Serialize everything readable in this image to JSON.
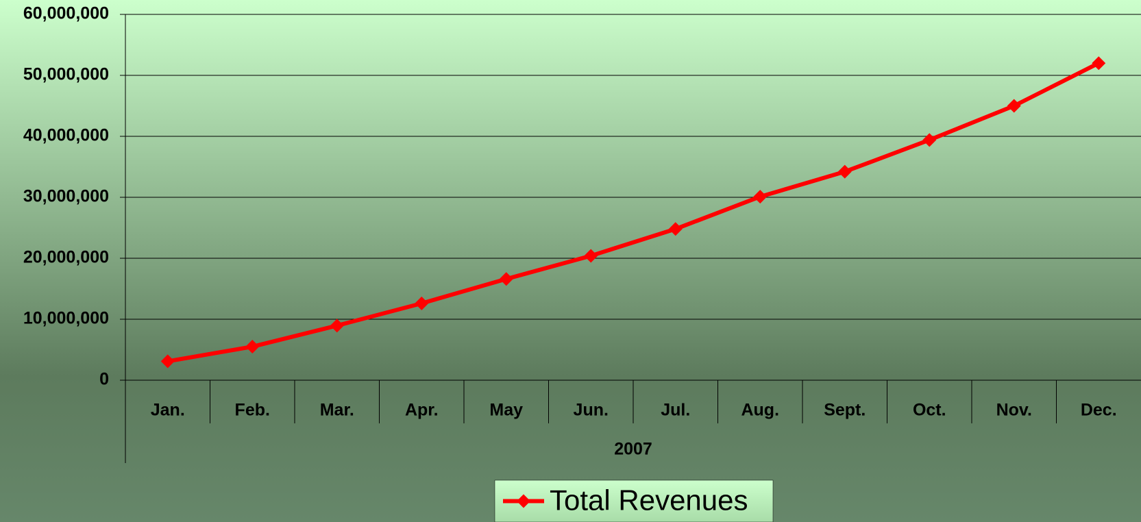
{
  "chart_data": {
    "type": "line",
    "categories": [
      "Jan.",
      "Feb.",
      "Mar.",
      "Apr.",
      "May",
      "Jun.",
      "Jul.",
      "Aug.",
      "Sept.",
      "Oct.",
      "Nov.",
      "Dec."
    ],
    "x_label": "2007",
    "series": [
      {
        "name": "Total Revenues",
        "color": "#ff0000",
        "values": [
          3100000,
          5500000,
          8950000,
          12600000,
          16600000,
          20400000,
          24800000,
          30100000,
          34200000,
          39400000,
          45000000,
          52000000
        ]
      }
    ],
    "ylim": [
      0,
      60000000
    ],
    "yticks": [
      {
        "value": 0,
        "label": "0"
      },
      {
        "value": 10000000,
        "label": "10,000,000"
      },
      {
        "value": 20000000,
        "label": "20,000,000"
      },
      {
        "value": 30000000,
        "label": "30,000,000"
      },
      {
        "value": 40000000,
        "label": "40,000,000"
      },
      {
        "value": 50000000,
        "label": "50,000,000"
      },
      {
        "value": 60000000,
        "label": "60,000,000"
      }
    ],
    "grid": true,
    "legend": "bottom"
  }
}
